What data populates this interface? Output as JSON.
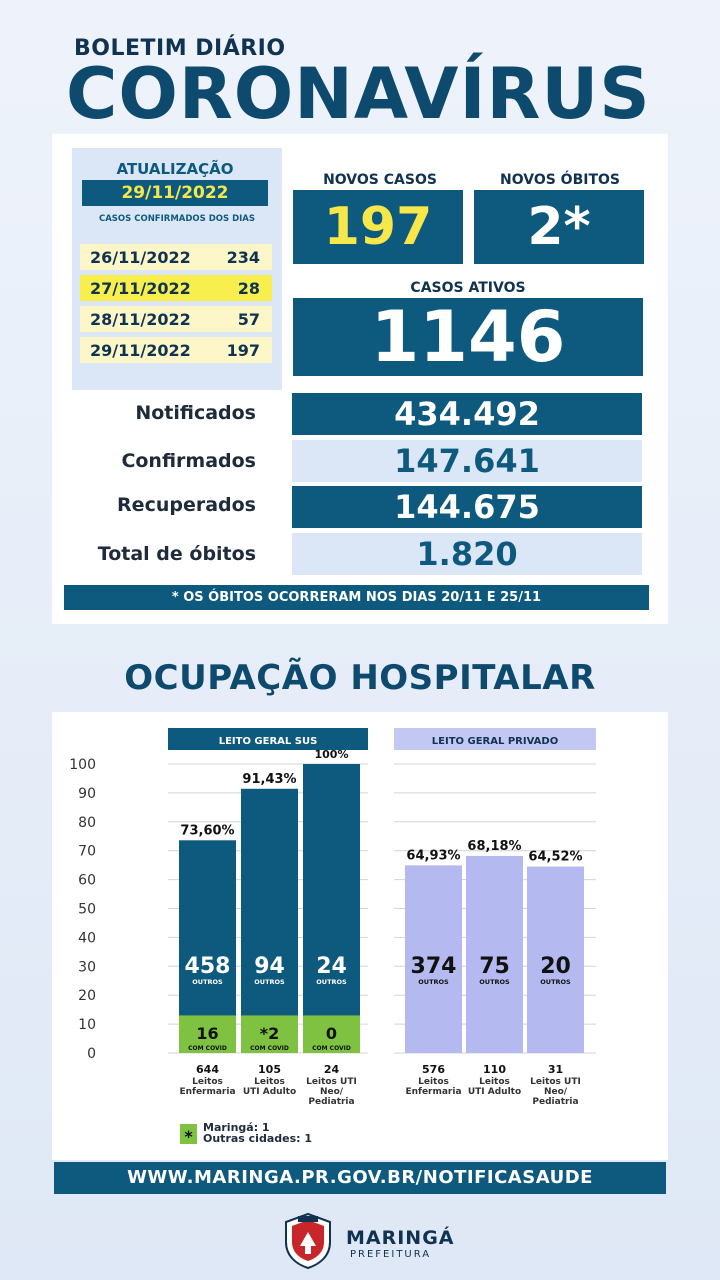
{
  "header": {
    "subtitle": "BOLETIM DIÁRIO",
    "title": "CORONAVÍRUS"
  },
  "update": {
    "label": "ATUALIZAÇÃO",
    "date": "29/11/2022",
    "subtitle": "CASOS CONFIRMADOS DOS DIAS",
    "days": [
      {
        "date": "26/11/2022",
        "count": "234"
      },
      {
        "date": "27/11/2022",
        "count": "28"
      },
      {
        "date": "28/11/2022",
        "count": "57"
      },
      {
        "date": "29/11/2022",
        "count": "197"
      }
    ]
  },
  "kpis": {
    "new_cases_label": "NOVOS CASOS",
    "new_cases": "197",
    "new_deaths_label": "NOVOS ÓBITOS",
    "new_deaths": "2*",
    "active_label": "CASOS ATIVOS",
    "active": "1146"
  },
  "stats": [
    {
      "label": "Notificados",
      "value": "434.492"
    },
    {
      "label": "Confirmados",
      "value": "147.641"
    },
    {
      "label": "Recuperados",
      "value": "144.675"
    },
    {
      "label": "Total de óbitos",
      "value": "1.820"
    }
  ],
  "note": "* OS ÓBITOS OCORRERAM NOS DIAS 20/11 E 25/11",
  "occupancy_title": "OCUPAÇÃO HOSPITALAR",
  "chart_data": {
    "type": "bar",
    "ylim": [
      0,
      100
    ],
    "yticks": [
      "0",
      "10",
      "20",
      "30",
      "40",
      "50",
      "60",
      "70",
      "80",
      "90",
      "100"
    ],
    "groups": [
      {
        "name": "LEITO GERAL SUS",
        "header_color": "#0e5a7e",
        "bar_color": "#0e5a7e",
        "bars": [
          {
            "pct": 73.6,
            "pct_label": "73,60%",
            "others": "458",
            "others_label": "OUTROS",
            "covid": "16",
            "covid_label": "COM COVID",
            "covid_pct": 13,
            "beds": "644",
            "category": [
              "Leitos",
              "Enfermaria"
            ]
          },
          {
            "pct": 91.43,
            "pct_label": "91,43%",
            "others": "94",
            "others_label": "OUTROS",
            "covid": "*2",
            "covid_label": "COM COVID",
            "covid_pct": 13,
            "beds": "105",
            "category": [
              "Leitos",
              "UTI Adulto"
            ]
          },
          {
            "pct": 100,
            "pct_label": "100%",
            "others": "24",
            "others_label": "OUTROS",
            "covid": "0",
            "covid_label": "COM COVID",
            "covid_pct": 13,
            "beds": "24",
            "category": [
              "Leitos UTI",
              "Neo/",
              "Pediatria"
            ]
          }
        ]
      },
      {
        "name": "LEITO GERAL PRIVADO",
        "header_color": "#c3c8f3",
        "bar_color": "#b4baf0",
        "bars": [
          {
            "pct": 64.93,
            "pct_label": "64,93%",
            "others": "374",
            "others_label": "OUTROS",
            "beds": "576",
            "category": [
              "Leitos",
              "Enfermaria"
            ]
          },
          {
            "pct": 68.18,
            "pct_label": "68,18%",
            "others": "75",
            "others_label": "OUTROS",
            "beds": "110",
            "category": [
              "Leitos",
              "UTI Adulto"
            ]
          },
          {
            "pct": 64.52,
            "pct_label": "64,52%",
            "others": "20",
            "others_label": "OUTROS",
            "beds": "31",
            "category": [
              "Leitos UTI",
              "Neo/",
              "Pediatria"
            ]
          }
        ]
      }
    ],
    "covid_color": "#7fc241",
    "legend": {
      "symbol": "*",
      "lines": [
        "Maringá: 1",
        "Outras cidades: 1"
      ]
    }
  },
  "footer": {
    "url": "WWW.MARINGA.PR.GOV.BR/NOTIFICASAUDE",
    "logo_name": "MARINGÁ",
    "logo_sub": "PREFEITURA"
  }
}
